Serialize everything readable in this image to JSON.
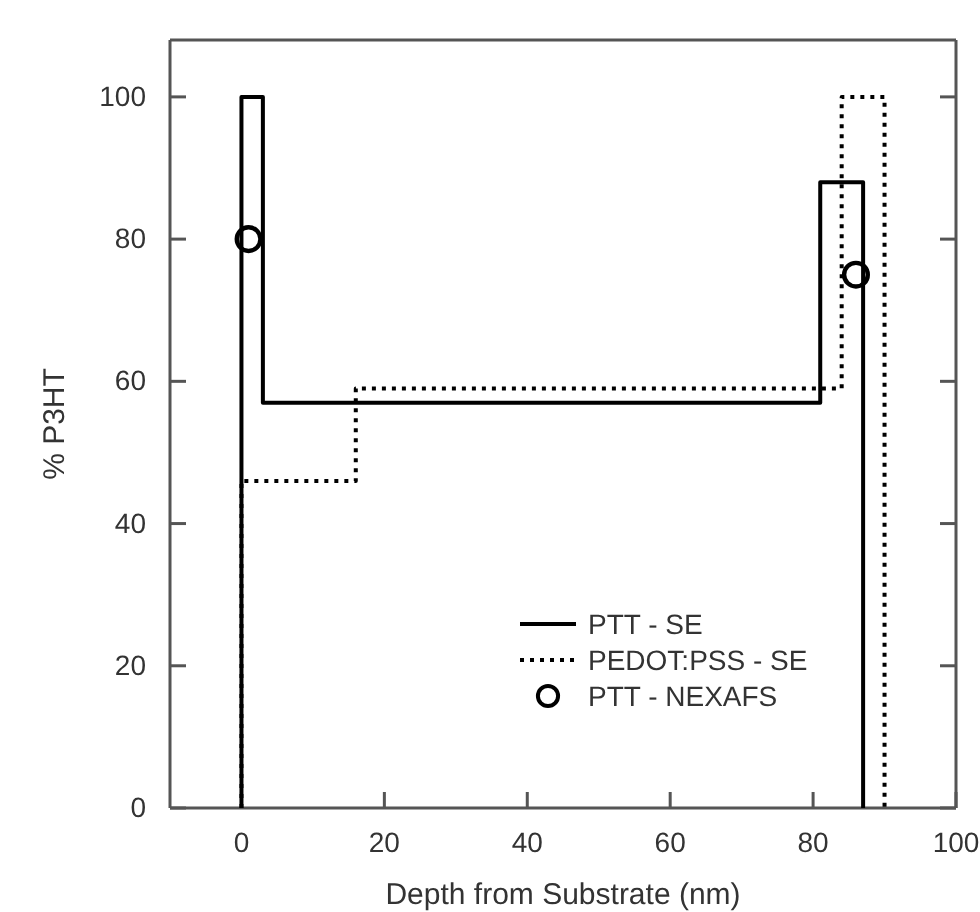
{
  "chart_data": {
    "type": "line",
    "xlabel": "Depth from Substrate (nm)",
    "ylabel": "% P3HT",
    "xlim": [
      -10,
      100
    ],
    "xticks": [
      0,
      20,
      40,
      60,
      80,
      100
    ],
    "ylim": [
      0,
      108
    ],
    "yticks": [
      0,
      20,
      40,
      60,
      80,
      100
    ],
    "legend": "bottom right",
    "grid": false,
    "series": [
      {
        "name": "PTT - SE",
        "type": "line",
        "color": "#000000",
        "line_style": "solid",
        "marker": "none",
        "x": [
          0,
          0,
          3,
          3,
          81,
          81,
          87,
          87
        ],
        "values": [
          0,
          100,
          100,
          57,
          57,
          88,
          88,
          0
        ]
      },
      {
        "name": "PEDOT:PSS - SE",
        "type": "line",
        "color": "#000000",
        "line_style": "dotted",
        "marker": "none",
        "x": [
          0,
          0,
          16,
          16,
          84,
          84,
          90,
          90
        ],
        "values": [
          0,
          46,
          46,
          59,
          59,
          100,
          100,
          0
        ]
      },
      {
        "name": "PTT - NEXAFS",
        "type": "scatter",
        "color": "#000000",
        "marker": "circle",
        "x": [
          1,
          86
        ],
        "values": [
          80,
          75
        ]
      }
    ]
  }
}
